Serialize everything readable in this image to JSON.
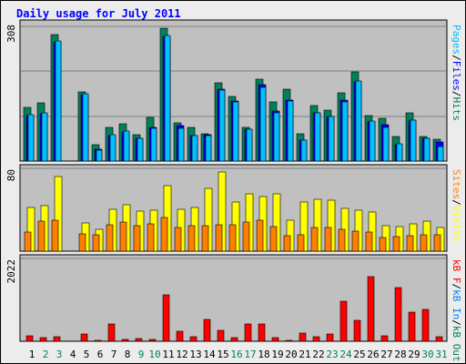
{
  "title": "Daily usage for July 2011",
  "colors": {
    "hits": "#00805c",
    "files": "#0000ff",
    "pages": "#00c0ff",
    "visits": "#ffff00",
    "sites": "#ff8000",
    "kb_in": "#0080ff",
    "kb_out": "#00805c",
    "kb": "#ff0000",
    "weekday_label": "#000000",
    "weekend_label": "#00805c",
    "title": "#0000ff",
    "panel_bg": "#c0c0c0",
    "outer_bg": "#ececec"
  },
  "legend": {
    "top": [
      {
        "key": "pages",
        "text": "Pages"
      },
      {
        "key": "sep",
        "text": "/"
      },
      {
        "key": "files",
        "text": "Files"
      },
      {
        "key": "sep",
        "text": "/"
      },
      {
        "key": "hits",
        "text": "Hits"
      }
    ],
    "mid": [
      {
        "key": "sites",
        "text": "Sites"
      },
      {
        "key": "sep",
        "text": "/"
      },
      {
        "key": "visits",
        "text": "Visits"
      }
    ],
    "bot": [
      {
        "key": "kb",
        "text": "kB F"
      },
      {
        "key": "sep",
        "text": "/"
      },
      {
        "key": "kb_in",
        "text": "kB In"
      },
      {
        "key": "sep",
        "text": "/"
      },
      {
        "key": "kb_out",
        "text": "kB Out"
      }
    ]
  },
  "chart_data": [
    {
      "type": "bar",
      "panel": "hits-files-pages",
      "ymax_label": "308",
      "ylim": [
        0,
        308
      ],
      "categories": [
        "1",
        "2",
        "3",
        "4",
        "5",
        "6",
        "7",
        "8",
        "9",
        "10",
        "11",
        "12",
        "13",
        "14",
        "15",
        "16",
        "17",
        "18",
        "19",
        "20",
        "21",
        "22",
        "23",
        "24",
        "25",
        "26",
        "27",
        "28",
        "29",
        "30",
        "31"
      ],
      "weekend_days": [
        "2",
        "3",
        "9",
        "10",
        "16",
        "17",
        "23",
        "24",
        "30",
        "31"
      ],
      "series": [
        {
          "name": "Hits",
          "values": [
            123,
            134,
            289,
            0,
            159,
            37,
            77,
            86,
            61,
            100,
            304,
            88,
            77,
            63,
            179,
            148,
            77,
            188,
            136,
            165,
            63,
            126,
            117,
            156,
            204,
            104,
            98,
            56,
            111,
            56,
            49
          ]
        },
        {
          "name": "Files",
          "values": [
            104,
            109,
            273,
            0,
            151,
            27,
            58,
            67,
            51,
            76,
            285,
            81,
            59,
            60,
            164,
            137,
            73,
            174,
            114,
            139,
            47,
            111,
            103,
            139,
            182,
            90,
            84,
            38,
            93,
            51,
            44
          ]
        },
        {
          "name": "Pages",
          "values": [
            106,
            110,
            274,
            0,
            153,
            25,
            60,
            69,
            52,
            74,
            288,
            74,
            59,
            58,
            162,
            135,
            72,
            169,
            110,
            138,
            48,
            111,
            102,
            136,
            183,
            91,
            78,
            39,
            93,
            52,
            33
          ]
        }
      ]
    },
    {
      "type": "bar",
      "panel": "visits-sites",
      "ymax_label": "80",
      "ylim": [
        0,
        85
      ],
      "categories": [
        "1",
        "2",
        "3",
        "4",
        "5",
        "6",
        "7",
        "8",
        "9",
        "10",
        "11",
        "12",
        "13",
        "14",
        "15",
        "16",
        "17",
        "18",
        "19",
        "20",
        "21",
        "22",
        "23",
        "24",
        "25",
        "26",
        "27",
        "28",
        "29",
        "30",
        "31"
      ],
      "series": [
        {
          "name": "Visits",
          "values": [
            45,
            47,
            77,
            0,
            29,
            22,
            43,
            48,
            41,
            42,
            67,
            43,
            45,
            64,
            81,
            50,
            59,
            56,
            59,
            32,
            50,
            53,
            52,
            44,
            42,
            40,
            26,
            25,
            28,
            31,
            24
          ]
        },
        {
          "name": "Sites",
          "values": [
            20,
            31,
            32,
            0,
            18,
            17,
            27,
            30,
            26,
            28,
            35,
            24,
            26,
            26,
            27,
            27,
            30,
            32,
            25,
            16,
            17,
            24,
            24,
            22,
            21,
            20,
            14,
            15,
            16,
            17,
            17
          ]
        }
      ]
    },
    {
      "type": "bar",
      "panel": "kb",
      "ymax_label": "2022",
      "ylim": [
        0,
        2170
      ],
      "categories": [
        "1",
        "2",
        "3",
        "4",
        "5",
        "6",
        "7",
        "8",
        "9",
        "10",
        "11",
        "12",
        "13",
        "14",
        "15",
        "16",
        "17",
        "18",
        "19",
        "20",
        "21",
        "22",
        "23",
        "24",
        "25",
        "26",
        "27",
        "28",
        "29",
        "30",
        "31"
      ],
      "series": [
        {
          "name": "kB F",
          "values": [
            146,
            97,
            130,
            0,
            184,
            29,
            460,
            37,
            74,
            51,
            1211,
            271,
            119,
            566,
            287,
            99,
            461,
            451,
            102,
            24,
            222,
            110,
            201,
            1044,
            542,
            1686,
            137,
            1406,
            752,
            834,
            108
          ]
        }
      ]
    }
  ]
}
